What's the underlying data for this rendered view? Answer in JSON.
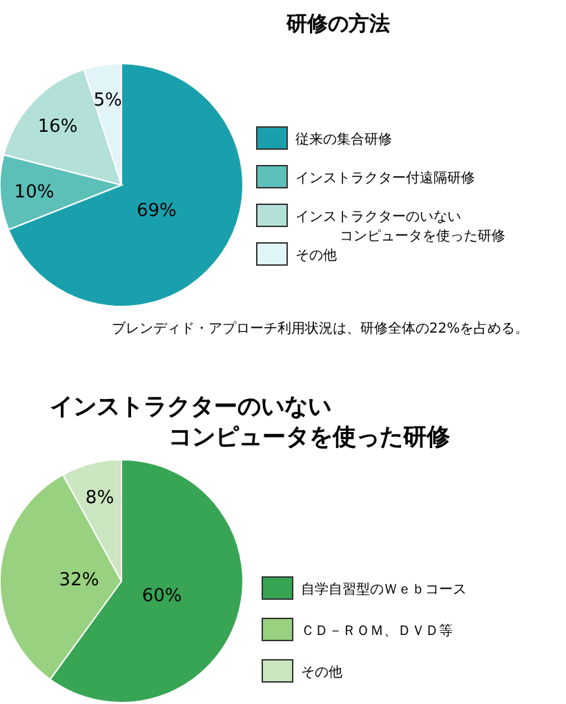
{
  "chart_data": [
    {
      "type": "pie",
      "title": "研修の方法",
      "categories": [
        "従来の集合研修",
        "インストラクター付遠隔研修",
        "インストラクターのいないコンピュータを使った研修",
        "その他"
      ],
      "values": [
        69,
        10,
        16,
        5
      ],
      "value_labels": [
        "69%",
        "10%",
        "16%",
        "5%"
      ],
      "colors": [
        "#1aa0ad",
        "#5cbfb8",
        "#b3e1da",
        "#e1f4f8"
      ],
      "legend": "right",
      "annotations": [
        "ブレンディド・アプローチ利用状況は、研修全体の22%を占める。"
      ]
    },
    {
      "type": "pie",
      "title": "インストラクターのいないコンピュータを使った研修",
      "categories": [
        "自学自習型のＷｅｂコース",
        "ＣＤ－ＲＯＭ、ＤＶＤ等",
        "その他"
      ],
      "values": [
        60,
        32,
        8
      ],
      "value_labels": [
        "60%",
        "32%",
        "8%"
      ],
      "colors": [
        "#37a554",
        "#98d17f",
        "#cbe6c0"
      ],
      "legend": "right"
    }
  ]
}
